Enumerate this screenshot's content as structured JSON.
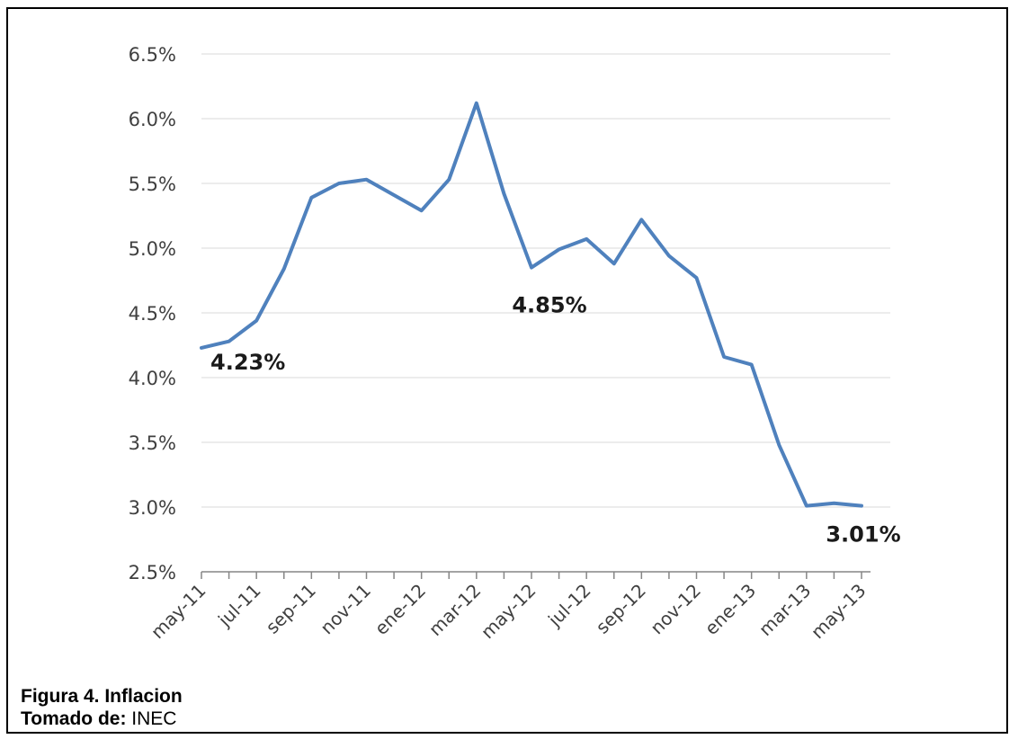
{
  "chart_data": {
    "type": "line",
    "title": "",
    "xlabel": "",
    "ylabel": "",
    "ylim": [
      2.5,
      6.5
    ],
    "yticks": [
      "2.5%",
      "3.0%",
      "3.5%",
      "4.0%",
      "4.5%",
      "5.0%",
      "5.5%",
      "6.0%",
      "6.5%"
    ],
    "ytick_values": [
      2.5,
      3.0,
      3.5,
      4.0,
      4.5,
      5.0,
      5.5,
      6.0,
      6.5
    ],
    "xtick_labels": [
      "may-11",
      "jul-11",
      "sep-11",
      "nov-11",
      "ene-12",
      "mar-12",
      "may-12",
      "jul-12",
      "sep-12",
      "nov-12",
      "ene-13",
      "mar-13",
      "may-13"
    ],
    "grid": true,
    "legend": "none",
    "line_color": "#4f81bd",
    "series": [
      {
        "x": [
          "may-11",
          "jun-11",
          "jul-11",
          "ago-11",
          "sep-11",
          "oct-11",
          "nov-11",
          "dic-11",
          "ene-12",
          "feb-12",
          "mar-12",
          "abr-12",
          "may-12",
          "jun-12",
          "jul-12",
          "ago-12",
          "sep-12",
          "oct-12",
          "nov-12",
          "dic-12",
          "ene-13",
          "feb-13",
          "mar-13",
          "abr-13",
          "may-13"
        ],
        "values": [
          4.23,
          4.28,
          4.44,
          4.84,
          5.39,
          5.5,
          5.53,
          5.41,
          5.29,
          5.53,
          6.12,
          5.42,
          4.85,
          4.99,
          5.07,
          4.88,
          5.22,
          4.94,
          4.77,
          4.16,
          4.1,
          3.48,
          3.01,
          3.03,
          3.01
        ]
      }
    ],
    "annotations": [
      {
        "index": 0,
        "text": "4.23%"
      },
      {
        "index": 12,
        "text": "4.85%"
      },
      {
        "index": 24,
        "text": "3.01%"
      }
    ]
  },
  "caption": {
    "figure": "Figura 4. Inflacion",
    "source_label": "Tomado de:",
    "source_value": " INEC"
  }
}
